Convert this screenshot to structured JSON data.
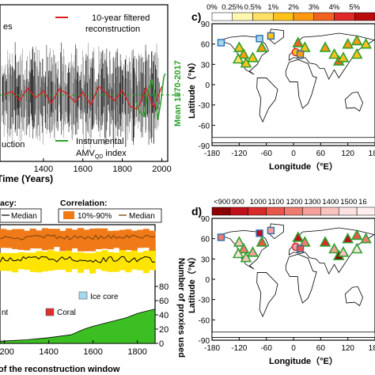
{
  "colors": {
    "recon_gray": "#1a1a1a",
    "filtered_red": "#d62020",
    "instrumental_green": "#2ca02c",
    "mean_green": "#2ca02c",
    "orange_band": "#f07a18",
    "yellow_band": "#ffe400",
    "median_brown": "#8a4a10",
    "coral_red": "#e0302a",
    "ice_blue": "#a6d8ef",
    "count_fill": "#3cbf22",
    "land": "#ffffff",
    "coast": "#000000"
  },
  "panel_a": {
    "legend_left_fragment": "es",
    "legend_left_fragment2": "uction",
    "legend_filtered_line1": "10-year filtered",
    "legend_filtered_line2": "reconstruction",
    "legend_instrumental_line1": "Instrumental",
    "legend_instrumental_line2": "AMV",
    "legend_instrumental_sub": "QD",
    "legend_instrumental_tail": " index",
    "mean_label": "Mean 1870-2017",
    "xlabel": "Time (Years)",
    "x_ticks": [
      "1400",
      "1600",
      "1800",
      "2000"
    ]
  },
  "panel_b": {
    "accuracy_label": "acy:",
    "correlation_label": "Correlation:",
    "median_left": "Median",
    "band_label": "10%-90%",
    "median_right": "Median",
    "legend_ice": "Ice core",
    "legend_coral": "Coral",
    "legend_left_fragment": "nt",
    "xlabel": "of the reconstruction window",
    "x_ticks": [
      "1200",
      "1400",
      "1600",
      "1800"
    ],
    "ylabel_right": "Number of proxies used",
    "y_ticks_right": [
      "0",
      "20",
      "40",
      "60",
      "80"
    ]
  },
  "panel_c": {
    "letter": "c)",
    "colorbar_ticks": [
      "0%",
      "0.25%",
      "0.5%",
      "1%",
      "2%",
      "3%",
      "4%",
      "5%"
    ],
    "colorbar_colors": [
      "#ffffff",
      "#fff6b0",
      "#ffe066",
      "#ffc21a",
      "#ff9a10",
      "#f2601e",
      "#e02828",
      "#b80c0c"
    ],
    "lat_ticks": [
      "90",
      "60",
      "30",
      "0",
      "-30",
      "-60",
      "-90"
    ],
    "lon_ticks": [
      "-180",
      "-120",
      "-60",
      "0",
      "60",
      "120",
      "180"
    ],
    "ylabel": "Latitude（°N）",
    "xlabel": "Longitude（°E）"
  },
  "panel_d": {
    "letter": "d)",
    "colorbar_ticks": [
      "<900",
      "900",
      "1000",
      "1100",
      "1200",
      "1300",
      "1400",
      "1500",
      "16"
    ],
    "colorbar_colors": [
      "#8b0000",
      "#c0101c",
      "#d92a2a",
      "#e8564a",
      "#f07b70",
      "#f5a09a",
      "#f9c4c0",
      "#fde2e0",
      "#fff0ee"
    ],
    "lat_ticks": [
      "90",
      "60",
      "30",
      "0",
      "-30",
      "-60",
      "-90"
    ],
    "lon_ticks": [
      "-180",
      "-120",
      "-60",
      "0",
      "60",
      "120",
      "180"
    ],
    "ylabel": "Latitude（°N）",
    "xlabel": "Longitude（°E）"
  },
  "chart_data": [
    {
      "type": "line",
      "panel": "a",
      "xlabel": "Time (Years)",
      "xlim": [
        1180,
        2030
      ],
      "series": [
        {
          "name": "10-year filtered reconstruction",
          "x": [
            1200,
            1240,
            1280,
            1320,
            1360,
            1400,
            1440,
            1480,
            1520,
            1560,
            1600,
            1640,
            1680,
            1720,
            1760,
            1800,
            1840,
            1880,
            1920,
            1960,
            2000
          ],
          "y": [
            0.0,
            0.05,
            -0.08,
            0.1,
            -0.04,
            0.06,
            -0.12,
            0.08,
            0.02,
            -0.1,
            0.04,
            -0.14,
            0.12,
            0.02,
            -0.08,
            0.06,
            -0.16,
            -0.2,
            0.1,
            -0.18,
            0.12
          ]
        },
        {
          "name": "Instrumental AMVQD index",
          "x": [
            1870,
            1890,
            1910,
            1930,
            1950,
            1965,
            1980,
            1995,
            2010,
            2017
          ],
          "y": [
            -0.1,
            -0.25,
            -0.3,
            0.05,
            0.22,
            0.0,
            -0.35,
            -0.1,
            0.25,
            0.3
          ]
        }
      ]
    },
    {
      "type": "area",
      "panel": "b",
      "xlabel": "of the reconstruction window",
      "ylabel": "Number of proxies used",
      "ylim": [
        0,
        80
      ],
      "x": [
        1180,
        1300,
        1400,
        1500,
        1560,
        1600,
        1650,
        1700,
        1750,
        1800,
        1850,
        1880
      ],
      "values": [
        3,
        5,
        8,
        12,
        20,
        24,
        28,
        32,
        36,
        42,
        46,
        48
      ]
    }
  ]
}
